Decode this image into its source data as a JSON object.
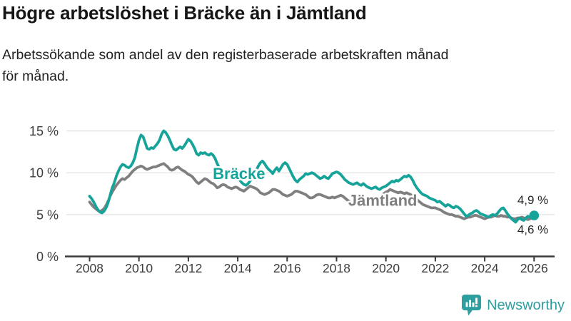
{
  "chart_data": {
    "type": "line",
    "title": "Högre arbetslöshet i Bräcke än i Jämtland",
    "subtitle": "Arbetssökande som andel av den registerbaserade arbetskraften månad för månad.",
    "subtitle_lines": [
      "Arbetssökande som andel av den registerbaserade arbetskraften månad",
      "för månad."
    ],
    "x_start": 2008,
    "points_per_year": 12,
    "xlim": [
      2007.9,
      2026.8
    ],
    "ylim": [
      0,
      15.5
    ],
    "grid": "horizontal",
    "legend_position": "inline-labels",
    "x_ticks": [
      {
        "value": 2008,
        "label": "2008"
      },
      {
        "value": 2010,
        "label": "2010"
      },
      {
        "value": 2012,
        "label": "2012"
      },
      {
        "value": 2014,
        "label": "2014"
      },
      {
        "value": 2016,
        "label": "2016"
      },
      {
        "value": 2018,
        "label": "2018"
      },
      {
        "value": 2020,
        "label": "2020"
      },
      {
        "value": 2022,
        "label": "2022"
      },
      {
        "value": 2024,
        "label": "2024"
      },
      {
        "value": 2026,
        "label": "2026"
      }
    ],
    "y_ticks": [
      {
        "value": 0,
        "label": "0 %"
      },
      {
        "value": 5,
        "label": "5 %"
      },
      {
        "value": 10,
        "label": "10 %"
      },
      {
        "value": 15,
        "label": "15 %"
      }
    ],
    "colors": {
      "grid": "#e4e4e4",
      "axis": "#3a3a3a",
      "tick_text": "#3d3d3d",
      "annotation": "#262626"
    },
    "series": [
      {
        "id": "bracke",
        "name": "Bräcke",
        "color": "#16a399",
        "end_dot": true,
        "inline_label": {
          "text": "Bräcke",
          "x": 2014.05,
          "y": 9.93
        },
        "end_label": {
          "text": "4,9 %",
          "x": 2025.95,
          "y": 6.78
        },
        "values": [
          7.2,
          6.9,
          6.5,
          6.0,
          5.6,
          5.3,
          5.2,
          5.4,
          5.8,
          6.4,
          7.3,
          8.2,
          8.8,
          9.6,
          10.2,
          10.7,
          11.0,
          10.9,
          10.7,
          10.6,
          10.8,
          11.2,
          11.8,
          12.9,
          13.9,
          14.5,
          14.3,
          13.6,
          12.9,
          12.8,
          13.0,
          12.9,
          13.2,
          13.5,
          13.9,
          14.6,
          15.0,
          14.8,
          14.4,
          13.9,
          13.3,
          12.8,
          12.7,
          12.9,
          13.1,
          12.9,
          13.2,
          13.6,
          14.0,
          13.8,
          13.4,
          12.9,
          12.3,
          12.1,
          12.4,
          12.3,
          12.4,
          12.2,
          12.1,
          12.3,
          12.1,
          11.7,
          11.1,
          10.6,
          10.2,
          9.9,
          9.7,
          9.6,
          9.8,
          10.0,
          9.8,
          9.6,
          9.4,
          9.1,
          8.8,
          8.6,
          8.5,
          8.7,
          9.0,
          9.4,
          9.8,
          10.3,
          10.8,
          11.2,
          11.4,
          11.1,
          10.7,
          10.4,
          10.2,
          9.9,
          10.3,
          10.6,
          10.2,
          10.6,
          11.0,
          11.2,
          11.0,
          10.5,
          10.0,
          9.5,
          9.1,
          8.9,
          9.2,
          9.4,
          9.6,
          9.9,
          9.8,
          9.9,
          10.0,
          9.9,
          9.7,
          9.5,
          9.3,
          9.4,
          9.6,
          9.4,
          9.3,
          9.6,
          9.9,
          10.0,
          10.1,
          10.0,
          9.8,
          9.5,
          9.2,
          9.0,
          8.8,
          8.7,
          8.6,
          8.7,
          8.8,
          8.6,
          8.5,
          8.7,
          8.5,
          8.3,
          8.2,
          8.1,
          8.2,
          8.3,
          8.1,
          8.0,
          8.2,
          8.3,
          8.4,
          8.6,
          8.8,
          9.0,
          8.9,
          9.1,
          9.0,
          9.2,
          9.4,
          9.6,
          9.5,
          9.7,
          9.5,
          9.1,
          8.6,
          8.2,
          7.9,
          7.6,
          7.4,
          7.3,
          7.2,
          7.0,
          6.9,
          6.8,
          6.7,
          6.5,
          6.6,
          6.4,
          6.2,
          6.0,
          6.2,
          6.1,
          5.9,
          5.8,
          6.0,
          5.9,
          5.7,
          5.4,
          5.1,
          4.8,
          4.9,
          5.1,
          5.2,
          5.4,
          5.5,
          5.3,
          5.1,
          5.0,
          4.9,
          4.8,
          4.7,
          4.9,
          5.0,
          4.9,
          5.1,
          5.4,
          5.7,
          5.8,
          5.5,
          5.1,
          4.8,
          4.5,
          4.3,
          4.1,
          4.4,
          4.6,
          4.4,
          4.3,
          4.6,
          4.8,
          4.7,
          4.8,
          4.9
        ]
      },
      {
        "id": "jamtland",
        "name": "Jämtland",
        "color": "#7f7f7f",
        "end_dot": false,
        "inline_label": {
          "text": "Jämtland",
          "x": 2019.87,
          "y": 6.73
        },
        "end_label": {
          "text": "4,6 %",
          "x": 2025.95,
          "y": 3.24
        },
        "values": [
          6.5,
          6.2,
          5.9,
          5.7,
          5.5,
          5.4,
          5.5,
          5.7,
          6.1,
          6.6,
          7.2,
          7.7,
          8.1,
          8.5,
          8.8,
          9.1,
          9.3,
          9.2,
          9.4,
          9.6,
          9.9,
          10.2,
          10.4,
          10.6,
          10.7,
          10.8,
          10.7,
          10.5,
          10.4,
          10.5,
          10.6,
          10.7,
          10.7,
          10.8,
          10.9,
          11.0,
          11.1,
          10.9,
          10.7,
          10.4,
          10.3,
          10.4,
          10.6,
          10.7,
          10.5,
          10.3,
          10.2,
          10.0,
          9.8,
          9.7,
          9.5,
          9.2,
          8.9,
          8.7,
          8.9,
          9.1,
          9.3,
          9.2,
          9.0,
          8.8,
          8.7,
          8.5,
          8.2,
          8.3,
          8.5,
          8.6,
          8.5,
          8.3,
          8.2,
          8.1,
          8.2,
          8.3,
          8.2,
          8.0,
          7.9,
          7.8,
          8.0,
          8.2,
          8.4,
          8.3,
          8.2,
          8.1,
          7.9,
          7.6,
          7.5,
          7.4,
          7.5,
          7.6,
          7.8,
          8.0,
          8.0,
          7.9,
          7.8,
          7.6,
          7.4,
          7.3,
          7.2,
          7.3,
          7.4,
          7.6,
          7.8,
          7.8,
          7.7,
          7.6,
          7.5,
          7.4,
          7.2,
          7.0,
          7.0,
          7.1,
          7.3,
          7.4,
          7.4,
          7.3,
          7.2,
          7.1,
          7.0,
          7.0,
          7.1,
          7.0,
          7.1,
          7.2,
          7.3,
          7.2,
          7.0,
          6.8,
          6.6,
          6.5,
          6.4,
          6.5,
          6.6,
          6.7,
          6.8,
          6.9,
          6.8,
          6.7,
          6.6,
          6.7,
          6.8,
          6.9,
          7.0,
          7.1,
          7.3,
          7.5,
          7.7,
          7.8,
          8.0,
          7.9,
          7.8,
          7.7,
          7.6,
          7.7,
          7.6,
          7.5,
          7.6,
          7.5,
          7.4,
          7.2,
          7.0,
          6.8,
          6.6,
          6.4,
          6.2,
          6.1,
          6.0,
          5.9,
          5.8,
          5.8,
          5.8,
          5.7,
          5.6,
          5.5,
          5.3,
          5.2,
          5.1,
          5.0,
          5.0,
          4.9,
          4.8,
          4.8,
          4.7,
          4.6,
          4.5,
          4.6,
          4.7,
          4.7,
          4.8,
          4.9,
          4.9,
          4.8,
          4.7,
          4.6,
          4.5,
          4.6,
          4.7,
          4.7,
          4.8,
          4.9,
          4.8,
          4.8,
          4.9,
          4.8,
          4.8,
          4.7,
          4.7,
          4.6,
          4.5,
          4.5,
          4.6,
          4.6,
          4.7,
          4.6,
          4.5,
          4.4,
          4.5,
          4.6,
          4.6
        ]
      }
    ]
  },
  "footer": {
    "brand": "Newsworthy",
    "brand_color": "#2f9e9e"
  }
}
